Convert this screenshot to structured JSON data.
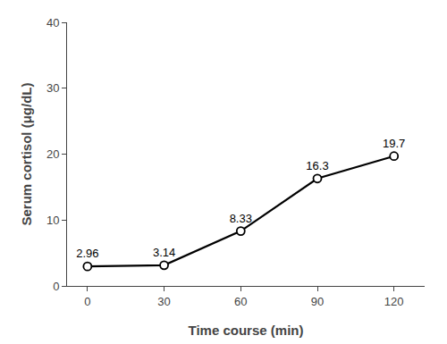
{
  "chart_data": {
    "type": "line",
    "x": [
      0,
      30,
      60,
      90,
      120
    ],
    "values": [
      2.96,
      3.14,
      8.33,
      16.3,
      19.7
    ],
    "xlabel": "Time course (min)",
    "ylabel": "Serum cortisol (μg/dL)",
    "xlim": [
      -8,
      132
    ],
    "ylim": [
      0,
      40
    ],
    "xticks": [
      0,
      30,
      60,
      90,
      120
    ],
    "yticks": [
      0,
      10,
      20,
      30,
      40
    ],
    "color": "#000000",
    "marker": "circle",
    "line_style": "solid",
    "data_labels": true,
    "grid": false
  }
}
